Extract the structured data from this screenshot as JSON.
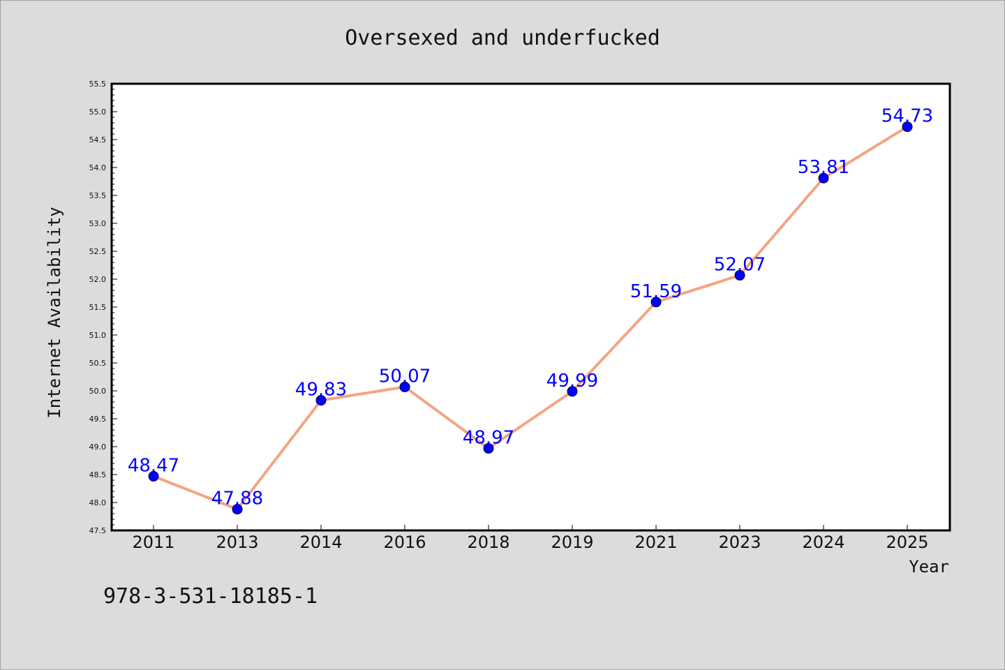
{
  "chart_data": {
    "type": "line",
    "title": "Oversexed and underfucked",
    "xlabel": "Year",
    "ylabel": "Internet Availability",
    "categories": [
      "2011",
      "2013",
      "2014",
      "2016",
      "2018",
      "2019",
      "2021",
      "2023",
      "2024",
      "2025"
    ],
    "series": [
      {
        "values": [
          48.47,
          47.88,
          49.83,
          50.07,
          48.97,
          49.99,
          51.59,
          52.07,
          53.81,
          54.73
        ]
      }
    ],
    "data_labels": [
      "48.47",
      "47.88",
      "49.83",
      "50.07",
      "48.97",
      "49.99",
      "51.59",
      "52.07",
      "53.81",
      "54.73"
    ],
    "ylim": [
      47.5,
      55.5
    ],
    "yticks": [
      "47.5",
      "48.0",
      "48.5",
      "49.0",
      "49.5",
      "50.0",
      "50.5",
      "51.0",
      "51.5",
      "52.0",
      "52.5",
      "53.0",
      "53.5",
      "54.0",
      "54.5",
      "55.0",
      "55.5"
    ],
    "grid": false,
    "legend": "none",
    "colors": {
      "line": "#f4a582",
      "marker": "#0000ff",
      "data_label": "#0000ff",
      "plot_background": "#ffffff",
      "figure_background": "#dcdcdc"
    }
  },
  "footer": {
    "isbn": "978-3-531-18185-1"
  }
}
